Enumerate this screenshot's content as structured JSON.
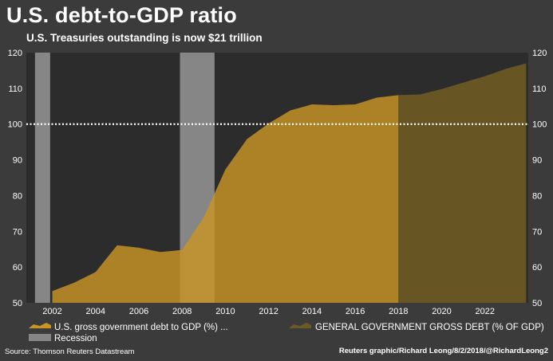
{
  "header": {
    "title": "U.S. debt-to-GDP ratio",
    "subtitle": "U.S. Treasuries outstanding is now $21 trillion"
  },
  "footer": {
    "source": "Source: Thomson Reuters Datastream",
    "credit": "Reuters graphic/Richard Leong/8/2/2018/@RichardLeong2"
  },
  "chart_data": {
    "type": "area",
    "title": "U.S. debt-to-GDP ratio",
    "subtitle": "U.S. Treasuries outstanding is now $21 trillion",
    "xlabel": "",
    "ylabel": "",
    "xlim": [
      2000.8,
      2024.0
    ],
    "ylim": [
      50,
      120
    ],
    "x_ticks": [
      2002,
      2004,
      2006,
      2008,
      2010,
      2012,
      2014,
      2016,
      2018,
      2020,
      2022
    ],
    "y_ticks": [
      50,
      60,
      70,
      80,
      90,
      100,
      110,
      120
    ],
    "y_axes": "left and right",
    "grid": false,
    "reference_line": {
      "y": 100,
      "style": "white dotted"
    },
    "legend_position": "bottom",
    "series": [
      {
        "name": "U.S. gross government debt to GDP (%) ...",
        "color": "#c99526",
        "x": [
          2002,
          2003,
          2004,
          2005,
          2006,
          2007,
          2008,
          2009,
          2010,
          2011,
          2012,
          2013,
          2014,
          2015,
          2016,
          2017,
          2018
        ],
        "y": [
          53.3,
          55.6,
          58.6,
          66.1,
          65.4,
          64.2,
          64.8,
          73.9,
          87.3,
          95.8,
          100.2,
          103.8,
          105.5,
          105.3,
          105.5,
          107.4,
          108.1
        ]
      },
      {
        "name": "GENERAL GOVERNMENT GROSS DEBT (% OF GDP)",
        "color": "#6c5a24",
        "x": [
          2018,
          2019,
          2020,
          2021,
          2022,
          2023,
          2023.9
        ],
        "y": [
          108.1,
          108.3,
          109.8,
          111.6,
          113.4,
          115.5,
          117.0
        ]
      }
    ],
    "recessions": {
      "name": "Recession",
      "color": "#868686",
      "periods": [
        [
          2001.2,
          2001.9
        ],
        [
          2007.9,
          2009.5
        ]
      ]
    }
  }
}
